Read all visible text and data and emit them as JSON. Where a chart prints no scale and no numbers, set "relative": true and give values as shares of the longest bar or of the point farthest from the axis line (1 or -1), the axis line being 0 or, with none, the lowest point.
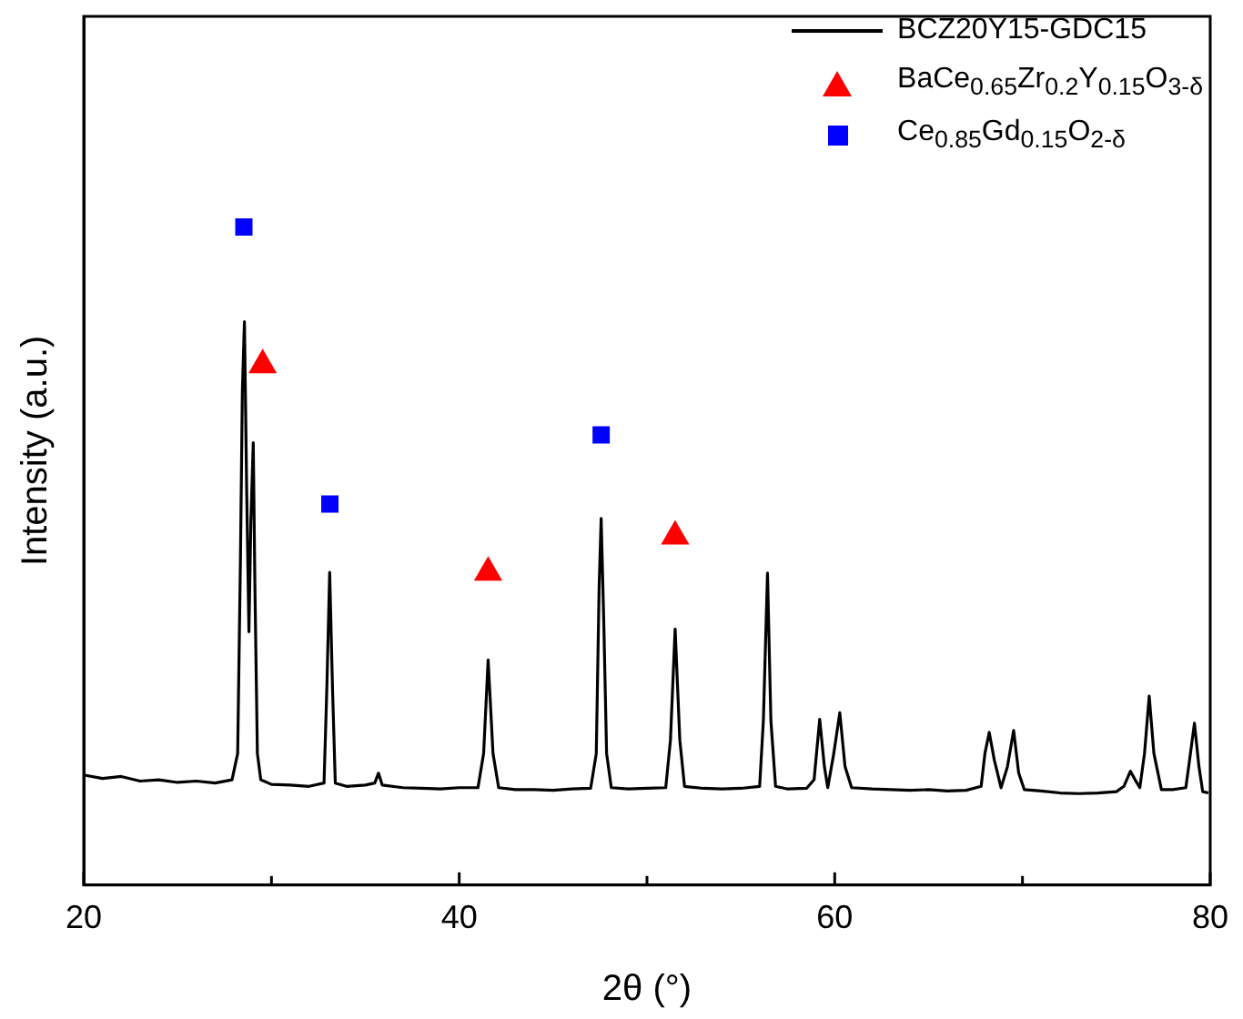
{
  "chart_data": {
    "type": "line",
    "xlabel": "2θ (°)",
    "ylabel": "Intensity (a.u.)",
    "relative": true,
    "xlim": [
      20,
      80
    ],
    "xticks": [
      20,
      {
        "value": 30,
        "label": null
      },
      40,
      {
        "value": 50,
        "label": null
      },
      60,
      {
        "value": 70,
        "label": null
      },
      80
    ],
    "legend": "top right",
    "grid": false,
    "marker": "none",
    "line_style": "solid",
    "series": [
      {
        "name": "BCZ20Y15-GDC15",
        "type": "line",
        "color": "#000000",
        "x": [
          20.05,
          21,
          22,
          23,
          24,
          25,
          26,
          27,
          27.9,
          28.2,
          28.35,
          28.45,
          28.56,
          28.68,
          28.8,
          28.9,
          29.03,
          29.12,
          29.25,
          29.43,
          30,
          31,
          32,
          32.8,
          32.95,
          33.1,
          33.25,
          33.4,
          34,
          35,
          35.5,
          35.7,
          35.9,
          37,
          38,
          39,
          40,
          41,
          41.3,
          41.54,
          41.8,
          42.1,
          43,
          44,
          45,
          46,
          47,
          47.3,
          47.45,
          47.56,
          47.7,
          47.85,
          48.1,
          49,
          50,
          51,
          51.25,
          51.5,
          51.75,
          52,
          53,
          54,
          55,
          56,
          56.2,
          56.42,
          56.6,
          56.85,
          57.5,
          58.5,
          58.9,
          59.2,
          59.45,
          59.63,
          59.95,
          60.27,
          60.55,
          60.9,
          62,
          63,
          64,
          65,
          66,
          67,
          67.8,
          68,
          68.23,
          68.5,
          68.86,
          69.2,
          69.53,
          69.8,
          70.1,
          71,
          72,
          73,
          74,
          75,
          75.4,
          75.75,
          76,
          76.25,
          76.5,
          76.75,
          77,
          77.4,
          78,
          78.7,
          78.9,
          79.16,
          79.4,
          79.6,
          79.9
        ],
        "values": [
          0.167,
          0.162,
          0.165,
          0.158,
          0.16,
          0.156,
          0.158,
          0.155,
          0.16,
          0.2,
          0.5,
          0.75,
          0.856,
          0.6,
          0.385,
          0.55,
          0.672,
          0.45,
          0.2,
          0.16,
          0.153,
          0.152,
          0.15,
          0.155,
          0.3,
          0.475,
          0.3,
          0.155,
          0.15,
          0.152,
          0.155,
          0.17,
          0.152,
          0.148,
          0.147,
          0.146,
          0.148,
          0.148,
          0.2,
          0.342,
          0.2,
          0.148,
          0.145,
          0.145,
          0.144,
          0.146,
          0.147,
          0.2,
          0.45,
          0.557,
          0.4,
          0.2,
          0.148,
          0.146,
          0.147,
          0.148,
          0.22,
          0.389,
          0.22,
          0.15,
          0.147,
          0.146,
          0.147,
          0.15,
          0.25,
          0.474,
          0.25,
          0.15,
          0.146,
          0.147,
          0.16,
          0.252,
          0.18,
          0.148,
          0.2,
          0.262,
          0.18,
          0.148,
          0.146,
          0.145,
          0.144,
          0.145,
          0.143,
          0.144,
          0.15,
          0.2,
          0.232,
          0.19,
          0.148,
          0.18,
          0.235,
          0.17,
          0.145,
          0.143,
          0.14,
          0.139,
          0.14,
          0.142,
          0.15,
          0.173,
          0.16,
          0.148,
          0.2,
          0.287,
          0.2,
          0.145,
          0.145,
          0.148,
          0.19,
          0.246,
          0.18,
          0.142,
          0.14
        ]
      },
      {
        "name": "BaCe$_{0.65}$Zr$_{0.2}$Y$_{0.15}$O$_{3-δ}$",
        "type": "scatter",
        "marker": "triangle",
        "color": "#ff0000",
        "x": [
          29.53,
          41.54,
          51.5
        ],
        "values": [
          0.79,
          0.475,
          0.53
        ]
      },
      {
        "name": "Ce$_{0.85}$Gd$_{0.15}$O$_{2-δ}$",
        "type": "scatter",
        "marker": "square",
        "color": "#0000ff",
        "x": [
          28.53,
          33.11,
          47.56
        ],
        "values": [
          1,
          0.579,
          0.684
        ]
      }
    ]
  }
}
